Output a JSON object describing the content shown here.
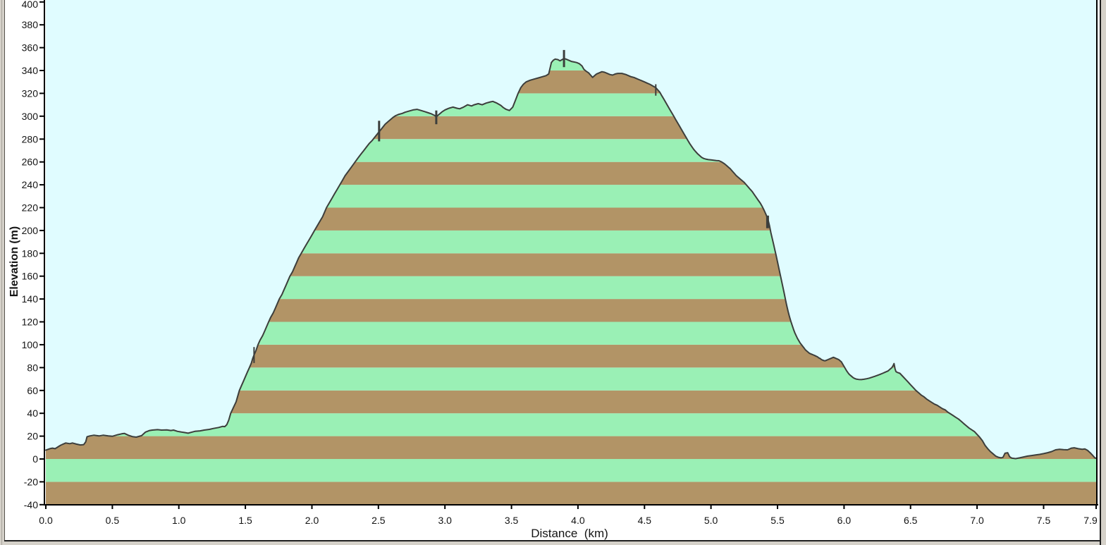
{
  "window": {
    "background_color": "#d5d1c9",
    "panel_color": "#ffffff",
    "border_dark": "#1f1f1f",
    "border_mid": "#55524c",
    "border_light": "#a8a49c"
  },
  "chart_data": {
    "type": "area",
    "title": "",
    "xlabel": "Distance  (km)",
    "ylabel": "Elevation (m)",
    "xlim": [
      0,
      7.9
    ],
    "ylim": [
      -40,
      400
    ],
    "y_tick_step": 20,
    "x_ticks": [
      0,
      0.5,
      1,
      1.5,
      2,
      2.5,
      3,
      3.5,
      4,
      4.5,
      5,
      5.5,
      6,
      6.5,
      7,
      7.5,
      7.9
    ],
    "x_tick_labels": [
      "0.0",
      "0.5",
      "1.0",
      "1.5",
      "2.0",
      "2.5",
      "3.0",
      "3.5",
      "4.0",
      "4.5",
      "5.0",
      "5.5",
      "6.0",
      "6.5",
      "7.0",
      "7.5",
      "7.9"
    ],
    "grid": false,
    "legend": "none",
    "stripe_height_m": 20,
    "colors": {
      "sky": "#e0fcff",
      "band_brown": "#b29466",
      "band_green": "#9af0b5",
      "line": "#3c3e3c",
      "axis": "#000000",
      "marker": "#3c3e3c"
    },
    "profile_km_m": [
      [
        0,
        7.8
      ],
      [
        0.03,
        9
      ],
      [
        0.05,
        9.5
      ],
      [
        0.07,
        9
      ],
      [
        0.09,
        10.5
      ],
      [
        0.11,
        12
      ],
      [
        0.13,
        13
      ],
      [
        0.15,
        14
      ],
      [
        0.18,
        13.4
      ],
      [
        0.2,
        14
      ],
      [
        0.23,
        13
      ],
      [
        0.26,
        12.3
      ],
      [
        0.285,
        12.6
      ],
      [
        0.3,
        15
      ],
      [
        0.31,
        19.5
      ],
      [
        0.33,
        20.2
      ],
      [
        0.36,
        20.8
      ],
      [
        0.4,
        20.2
      ],
      [
        0.43,
        20.8
      ],
      [
        0.47,
        20.2
      ],
      [
        0.5,
        19.9
      ],
      [
        0.54,
        21.2
      ],
      [
        0.57,
        22
      ],
      [
        0.59,
        22.4
      ],
      [
        0.62,
        20.8
      ],
      [
        0.65,
        19.6
      ],
      [
        0.68,
        19.1
      ],
      [
        0.72,
        20.4
      ],
      [
        0.75,
        23.6
      ],
      [
        0.78,
        24.9
      ],
      [
        0.8,
        25.3
      ],
      [
        0.84,
        25.7
      ],
      [
        0.87,
        25.3
      ],
      [
        0.91,
        25.5
      ],
      [
        0.94,
        24.9
      ],
      [
        0.96,
        25.3
      ],
      [
        0.99,
        24.2
      ],
      [
        1.02,
        23.6
      ],
      [
        1.04,
        23.2
      ],
      [
        1.07,
        22.6
      ],
      [
        1.1,
        23.6
      ],
      [
        1.12,
        24.2
      ],
      [
        1.16,
        24.6
      ],
      [
        1.19,
        25.3
      ],
      [
        1.23,
        25.9
      ],
      [
        1.26,
        26.7
      ],
      [
        1.3,
        27.6
      ],
      [
        1.33,
        28.6
      ],
      [
        1.345,
        28.3
      ],
      [
        1.36,
        30
      ],
      [
        1.375,
        34
      ],
      [
        1.39,
        40
      ],
      [
        1.41,
        45
      ],
      [
        1.43,
        50
      ],
      [
        1.445,
        56
      ],
      [
        1.455,
        60
      ],
      [
        1.47,
        64
      ],
      [
        1.485,
        68
      ],
      [
        1.5,
        72
      ],
      [
        1.515,
        76
      ],
      [
        1.53,
        80
      ],
      [
        1.545,
        84
      ],
      [
        1.555,
        88
      ],
      [
        1.565,
        91
      ],
      [
        1.58,
        95
      ],
      [
        1.595,
        100
      ],
      [
        1.61,
        104
      ],
      [
        1.63,
        108
      ],
      [
        1.645,
        112
      ],
      [
        1.66,
        116
      ],
      [
        1.675,
        120
      ],
      [
        1.69,
        124
      ],
      [
        1.71,
        128
      ],
      [
        1.725,
        132
      ],
      [
        1.74,
        136
      ],
      [
        1.755,
        140
      ],
      [
        1.775,
        144
      ],
      [
        1.79,
        148
      ],
      [
        1.805,
        152
      ],
      [
        1.82,
        156
      ],
      [
        1.835,
        160
      ],
      [
        1.855,
        164
      ],
      [
        1.87,
        168
      ],
      [
        1.885,
        172
      ],
      [
        1.9,
        176
      ],
      [
        1.92,
        180
      ],
      [
        1.94,
        184
      ],
      [
        1.96,
        188
      ],
      [
        1.98,
        192
      ],
      [
        2,
        196
      ],
      [
        2.02,
        200
      ],
      [
        2.04,
        204
      ],
      [
        2.06,
        208
      ],
      [
        2.08,
        212
      ],
      [
        2.095,
        216
      ],
      [
        2.11,
        220
      ],
      [
        2.13,
        224
      ],
      [
        2.15,
        228
      ],
      [
        2.17,
        232
      ],
      [
        2.19,
        236
      ],
      [
        2.21,
        240
      ],
      [
        2.23,
        244
      ],
      [
        2.25,
        248
      ],
      [
        2.275,
        252
      ],
      [
        2.3,
        256
      ],
      [
        2.325,
        260
      ],
      [
        2.35,
        264
      ],
      [
        2.37,
        267
      ],
      [
        2.39,
        270
      ],
      [
        2.41,
        273
      ],
      [
        2.43,
        276
      ],
      [
        2.455,
        279
      ],
      [
        2.475,
        282
      ],
      [
        2.495,
        285
      ],
      [
        2.51,
        287
      ],
      [
        2.53,
        290
      ],
      [
        2.55,
        293
      ],
      [
        2.57,
        295
      ],
      [
        2.59,
        297
      ],
      [
        2.61,
        299
      ],
      [
        2.63,
        300.5
      ],
      [
        2.65,
        301.5
      ],
      [
        2.68,
        302.5
      ],
      [
        2.7,
        303.5
      ],
      [
        2.73,
        304.5
      ],
      [
        2.76,
        305.5
      ],
      [
        2.79,
        306
      ],
      [
        2.82,
        305
      ],
      [
        2.85,
        304
      ],
      [
        2.875,
        303
      ],
      [
        2.9,
        302
      ],
      [
        2.925,
        300.5
      ],
      [
        2.935,
        299.5
      ],
      [
        2.945,
        300.5
      ],
      [
        2.96,
        302
      ],
      [
        2.98,
        304
      ],
      [
        3,
        305.5
      ],
      [
        3.03,
        307
      ],
      [
        3.06,
        308
      ],
      [
        3.09,
        307
      ],
      [
        3.11,
        306.5
      ],
      [
        3.14,
        308
      ],
      [
        3.17,
        310
      ],
      [
        3.2,
        309
      ],
      [
        3.22,
        310
      ],
      [
        3.25,
        311
      ],
      [
        3.28,
        310
      ],
      [
        3.31,
        311.5
      ],
      [
        3.34,
        312.5
      ],
      [
        3.36,
        313
      ],
      [
        3.39,
        311.5
      ],
      [
        3.42,
        309.5
      ],
      [
        3.44,
        307.5
      ],
      [
        3.46,
        306
      ],
      [
        3.485,
        305
      ],
      [
        3.51,
        308
      ],
      [
        3.53,
        314
      ],
      [
        3.55,
        320
      ],
      [
        3.57,
        325
      ],
      [
        3.59,
        328
      ],
      [
        3.61,
        330
      ],
      [
        3.64,
        331.5
      ],
      [
        3.67,
        332.5
      ],
      [
        3.7,
        333.5
      ],
      [
        3.73,
        334.5
      ],
      [
        3.76,
        335.5
      ],
      [
        3.78,
        337
      ],
      [
        3.79,
        342
      ],
      [
        3.8,
        347
      ],
      [
        3.815,
        349
      ],
      [
        3.83,
        350
      ],
      [
        3.85,
        349.5
      ],
      [
        3.865,
        348.5
      ],
      [
        3.88,
        349.5
      ],
      [
        3.895,
        350.5
      ],
      [
        3.91,
        350
      ],
      [
        3.93,
        349
      ],
      [
        3.95,
        348
      ],
      [
        3.97,
        347.5
      ],
      [
        3.99,
        347
      ],
      [
        4.01,
        346
      ],
      [
        4.03,
        344
      ],
      [
        4.045,
        341
      ],
      [
        4.06,
        339.5
      ],
      [
        4.08,
        338
      ],
      [
        4.095,
        336
      ],
      [
        4.11,
        334
      ],
      [
        4.125,
        335.5
      ],
      [
        4.14,
        337
      ],
      [
        4.16,
        338
      ],
      [
        4.18,
        339
      ],
      [
        4.2,
        338.5
      ],
      [
        4.22,
        337.5
      ],
      [
        4.24,
        336.5
      ],
      [
        4.26,
        336
      ],
      [
        4.28,
        337
      ],
      [
        4.3,
        337.5
      ],
      [
        4.33,
        337.5
      ],
      [
        4.36,
        336.5
      ],
      [
        4.38,
        335.5
      ],
      [
        4.4,
        334.5
      ],
      [
        4.42,
        334
      ],
      [
        4.44,
        333
      ],
      [
        4.46,
        332
      ],
      [
        4.48,
        331
      ],
      [
        4.5,
        330
      ],
      [
        4.52,
        329
      ],
      [
        4.54,
        328
      ],
      [
        4.555,
        327
      ],
      [
        4.57,
        326
      ],
      [
        4.585,
        325
      ],
      [
        4.6,
        323
      ],
      [
        4.615,
        321
      ],
      [
        4.63,
        318
      ],
      [
        4.645,
        315
      ],
      [
        4.66,
        312
      ],
      [
        4.675,
        309
      ],
      [
        4.69,
        306
      ],
      [
        4.705,
        303
      ],
      [
        4.72,
        300
      ],
      [
        4.735,
        297
      ],
      [
        4.75,
        294
      ],
      [
        4.765,
        291
      ],
      [
        4.78,
        288
      ],
      [
        4.795,
        285
      ],
      [
        4.81,
        282
      ],
      [
        4.825,
        279
      ],
      [
        4.84,
        276
      ],
      [
        4.855,
        273.5
      ],
      [
        4.87,
        271
      ],
      [
        4.885,
        269
      ],
      [
        4.9,
        267
      ],
      [
        4.915,
        265.5
      ],
      [
        4.93,
        264
      ],
      [
        4.945,
        263
      ],
      [
        4.96,
        262.5
      ],
      [
        4.98,
        262
      ],
      [
        5,
        261.8
      ],
      [
        5.02,
        261.5
      ],
      [
        5.04,
        261.2
      ],
      [
        5.06,
        261
      ],
      [
        5.08,
        260
      ],
      [
        5.1,
        258.5
      ],
      [
        5.115,
        257
      ],
      [
        5.13,
        255.5
      ],
      [
        5.145,
        254
      ],
      [
        5.16,
        252
      ],
      [
        5.175,
        250
      ],
      [
        5.19,
        248
      ],
      [
        5.205,
        246.5
      ],
      [
        5.22,
        245
      ],
      [
        5.235,
        243.5
      ],
      [
        5.25,
        242
      ],
      [
        5.265,
        240
      ],
      [
        5.28,
        238
      ],
      [
        5.295,
        236
      ],
      [
        5.31,
        234
      ],
      [
        5.325,
        231.5
      ],
      [
        5.34,
        229
      ],
      [
        5.355,
        226.5
      ],
      [
        5.37,
        224
      ],
      [
        5.385,
        221
      ],
      [
        5.4,
        217.5
      ],
      [
        5.415,
        213.5
      ],
      [
        5.43,
        209
      ],
      [
        5.44,
        204
      ],
      [
        5.45,
        198
      ],
      [
        5.46,
        193
      ],
      [
        5.47,
        188
      ],
      [
        5.48,
        183
      ],
      [
        5.49,
        178
      ],
      [
        5.5,
        172.5
      ],
      [
        5.51,
        167
      ],
      [
        5.52,
        161.5
      ],
      [
        5.53,
        156
      ],
      [
        5.54,
        150.5
      ],
      [
        5.55,
        145
      ],
      [
        5.56,
        139.5
      ],
      [
        5.57,
        134
      ],
      [
        5.58,
        129
      ],
      [
        5.59,
        124.5
      ],
      [
        5.6,
        120.5
      ],
      [
        5.61,
        117
      ],
      [
        5.62,
        113.5
      ],
      [
        5.63,
        110.5
      ],
      [
        5.64,
        108
      ],
      [
        5.65,
        105.5
      ],
      [
        5.66,
        103.5
      ],
      [
        5.67,
        101.5
      ],
      [
        5.68,
        100
      ],
      [
        5.69,
        98.5
      ],
      [
        5.7,
        97
      ],
      [
        5.71,
        95.5
      ],
      [
        5.72,
        94.5
      ],
      [
        5.73,
        93.5
      ],
      [
        5.74,
        92.5
      ],
      [
        5.75,
        92
      ],
      [
        5.76,
        91.5
      ],
      [
        5.77,
        91
      ],
      [
        5.78,
        90.5
      ],
      [
        5.79,
        90
      ],
      [
        5.8,
        89.5
      ],
      [
        5.81,
        88.5
      ],
      [
        5.82,
        88
      ],
      [
        5.83,
        87
      ],
      [
        5.84,
        86.5
      ],
      [
        5.85,
        86
      ],
      [
        5.86,
        86
      ],
      [
        5.87,
        86.5
      ],
      [
        5.88,
        87
      ],
      [
        5.89,
        87.5
      ],
      [
        5.9,
        88
      ],
      [
        5.91,
        88.5
      ],
      [
        5.92,
        89
      ],
      [
        5.93,
        88.5
      ],
      [
        5.94,
        88
      ],
      [
        5.95,
        87.5
      ],
      [
        5.96,
        87
      ],
      [
        5.97,
        86
      ],
      [
        5.98,
        85
      ],
      [
        5.99,
        83
      ],
      [
        6,
        81
      ],
      [
        6.01,
        79
      ],
      [
        6.02,
        77
      ],
      [
        6.03,
        75.5
      ],
      [
        6.04,
        74
      ],
      [
        6.05,
        73
      ],
      [
        6.06,
        72
      ],
      [
        6.07,
        71
      ],
      [
        6.08,
        70.5
      ],
      [
        6.09,
        70
      ],
      [
        6.11,
        69.6
      ],
      [
        6.13,
        69.5
      ],
      [
        6.15,
        69.8
      ],
      [
        6.17,
        70.2
      ],
      [
        6.19,
        70.8
      ],
      [
        6.21,
        71.5
      ],
      [
        6.23,
        72.3
      ],
      [
        6.25,
        73.2
      ],
      [
        6.27,
        74
      ],
      [
        6.29,
        75
      ],
      [
        6.31,
        76
      ],
      [
        6.33,
        77
      ],
      [
        6.345,
        78.5
      ],
      [
        6.36,
        80
      ],
      [
        6.37,
        82
      ],
      [
        6.376,
        83.5
      ],
      [
        6.383,
        79
      ],
      [
        6.39,
        76.5
      ],
      [
        6.4,
        75.8
      ],
      [
        6.42,
        75
      ],
      [
        6.44,
        72.5
      ],
      [
        6.46,
        70
      ],
      [
        6.48,
        67.5
      ],
      [
        6.5,
        65
      ],
      [
        6.52,
        62.5
      ],
      [
        6.54,
        60
      ],
      [
        6.56,
        58
      ],
      [
        6.58,
        56
      ],
      [
        6.6,
        54.5
      ],
      [
        6.62,
        52.5
      ],
      [
        6.64,
        51
      ],
      [
        6.66,
        49.5
      ],
      [
        6.68,
        48
      ],
      [
        6.7,
        47
      ],
      [
        6.72,
        45.5
      ],
      [
        6.74,
        44
      ],
      [
        6.76,
        43
      ],
      [
        6.78,
        41
      ],
      [
        6.8,
        39.5
      ],
      [
        6.82,
        38
      ],
      [
        6.84,
        36.5
      ],
      [
        6.86,
        35
      ],
      [
        6.88,
        33
      ],
      [
        6.9,
        31
      ],
      [
        6.92,
        29
      ],
      [
        6.94,
        27
      ],
      [
        6.96,
        25.5
      ],
      [
        6.98,
        24
      ],
      [
        7,
        21.5
      ],
      [
        7.02,
        19
      ],
      [
        7.04,
        16
      ],
      [
        7.06,
        12
      ],
      [
        7.08,
        9
      ],
      [
        7.1,
        6.5
      ],
      [
        7.12,
        4.5
      ],
      [
        7.14,
        2.5
      ],
      [
        7.16,
        1.5
      ],
      [
        7.18,
        1
      ],
      [
        7.195,
        1.5
      ],
      [
        7.21,
        5
      ],
      [
        7.23,
        5.5
      ],
      [
        7.245,
        2
      ],
      [
        7.26,
        0.8
      ],
      [
        7.29,
        0.3
      ],
      [
        7.32,
        1
      ],
      [
        7.35,
        1.8
      ],
      [
        7.38,
        2.5
      ],
      [
        7.41,
        3
      ],
      [
        7.44,
        3.5
      ],
      [
        7.47,
        4
      ],
      [
        7.5,
        4.7
      ],
      [
        7.53,
        5.5
      ],
      [
        7.56,
        6.5
      ],
      [
        7.59,
        8
      ],
      [
        7.62,
        8.5
      ],
      [
        7.65,
        8.2
      ],
      [
        7.68,
        8
      ],
      [
        7.71,
        9.5
      ],
      [
        7.73,
        9.8
      ],
      [
        7.76,
        9
      ],
      [
        7.79,
        8.5
      ],
      [
        7.81,
        8.8
      ],
      [
        7.83,
        7.5
      ],
      [
        7.85,
        5.5
      ],
      [
        7.87,
        3
      ],
      [
        7.885,
        1
      ],
      [
        7.9,
        0.5
      ]
    ],
    "markers": [
      {
        "x": 1.565,
        "y1": 84,
        "y2": 98,
        "w": 2
      },
      {
        "x": 2.505,
        "y1": 278,
        "y2": 296,
        "w": 3
      },
      {
        "x": 2.935,
        "y1": 293,
        "y2": 305,
        "w": 3
      },
      {
        "x": 3.895,
        "y1": 343,
        "y2": 358,
        "w": 3
      },
      {
        "x": 4.585,
        "y1": 318,
        "y2": 328,
        "w": 2
      },
      {
        "x": 5.425,
        "y1": 202,
        "y2": 213,
        "w": 4
      }
    ]
  }
}
